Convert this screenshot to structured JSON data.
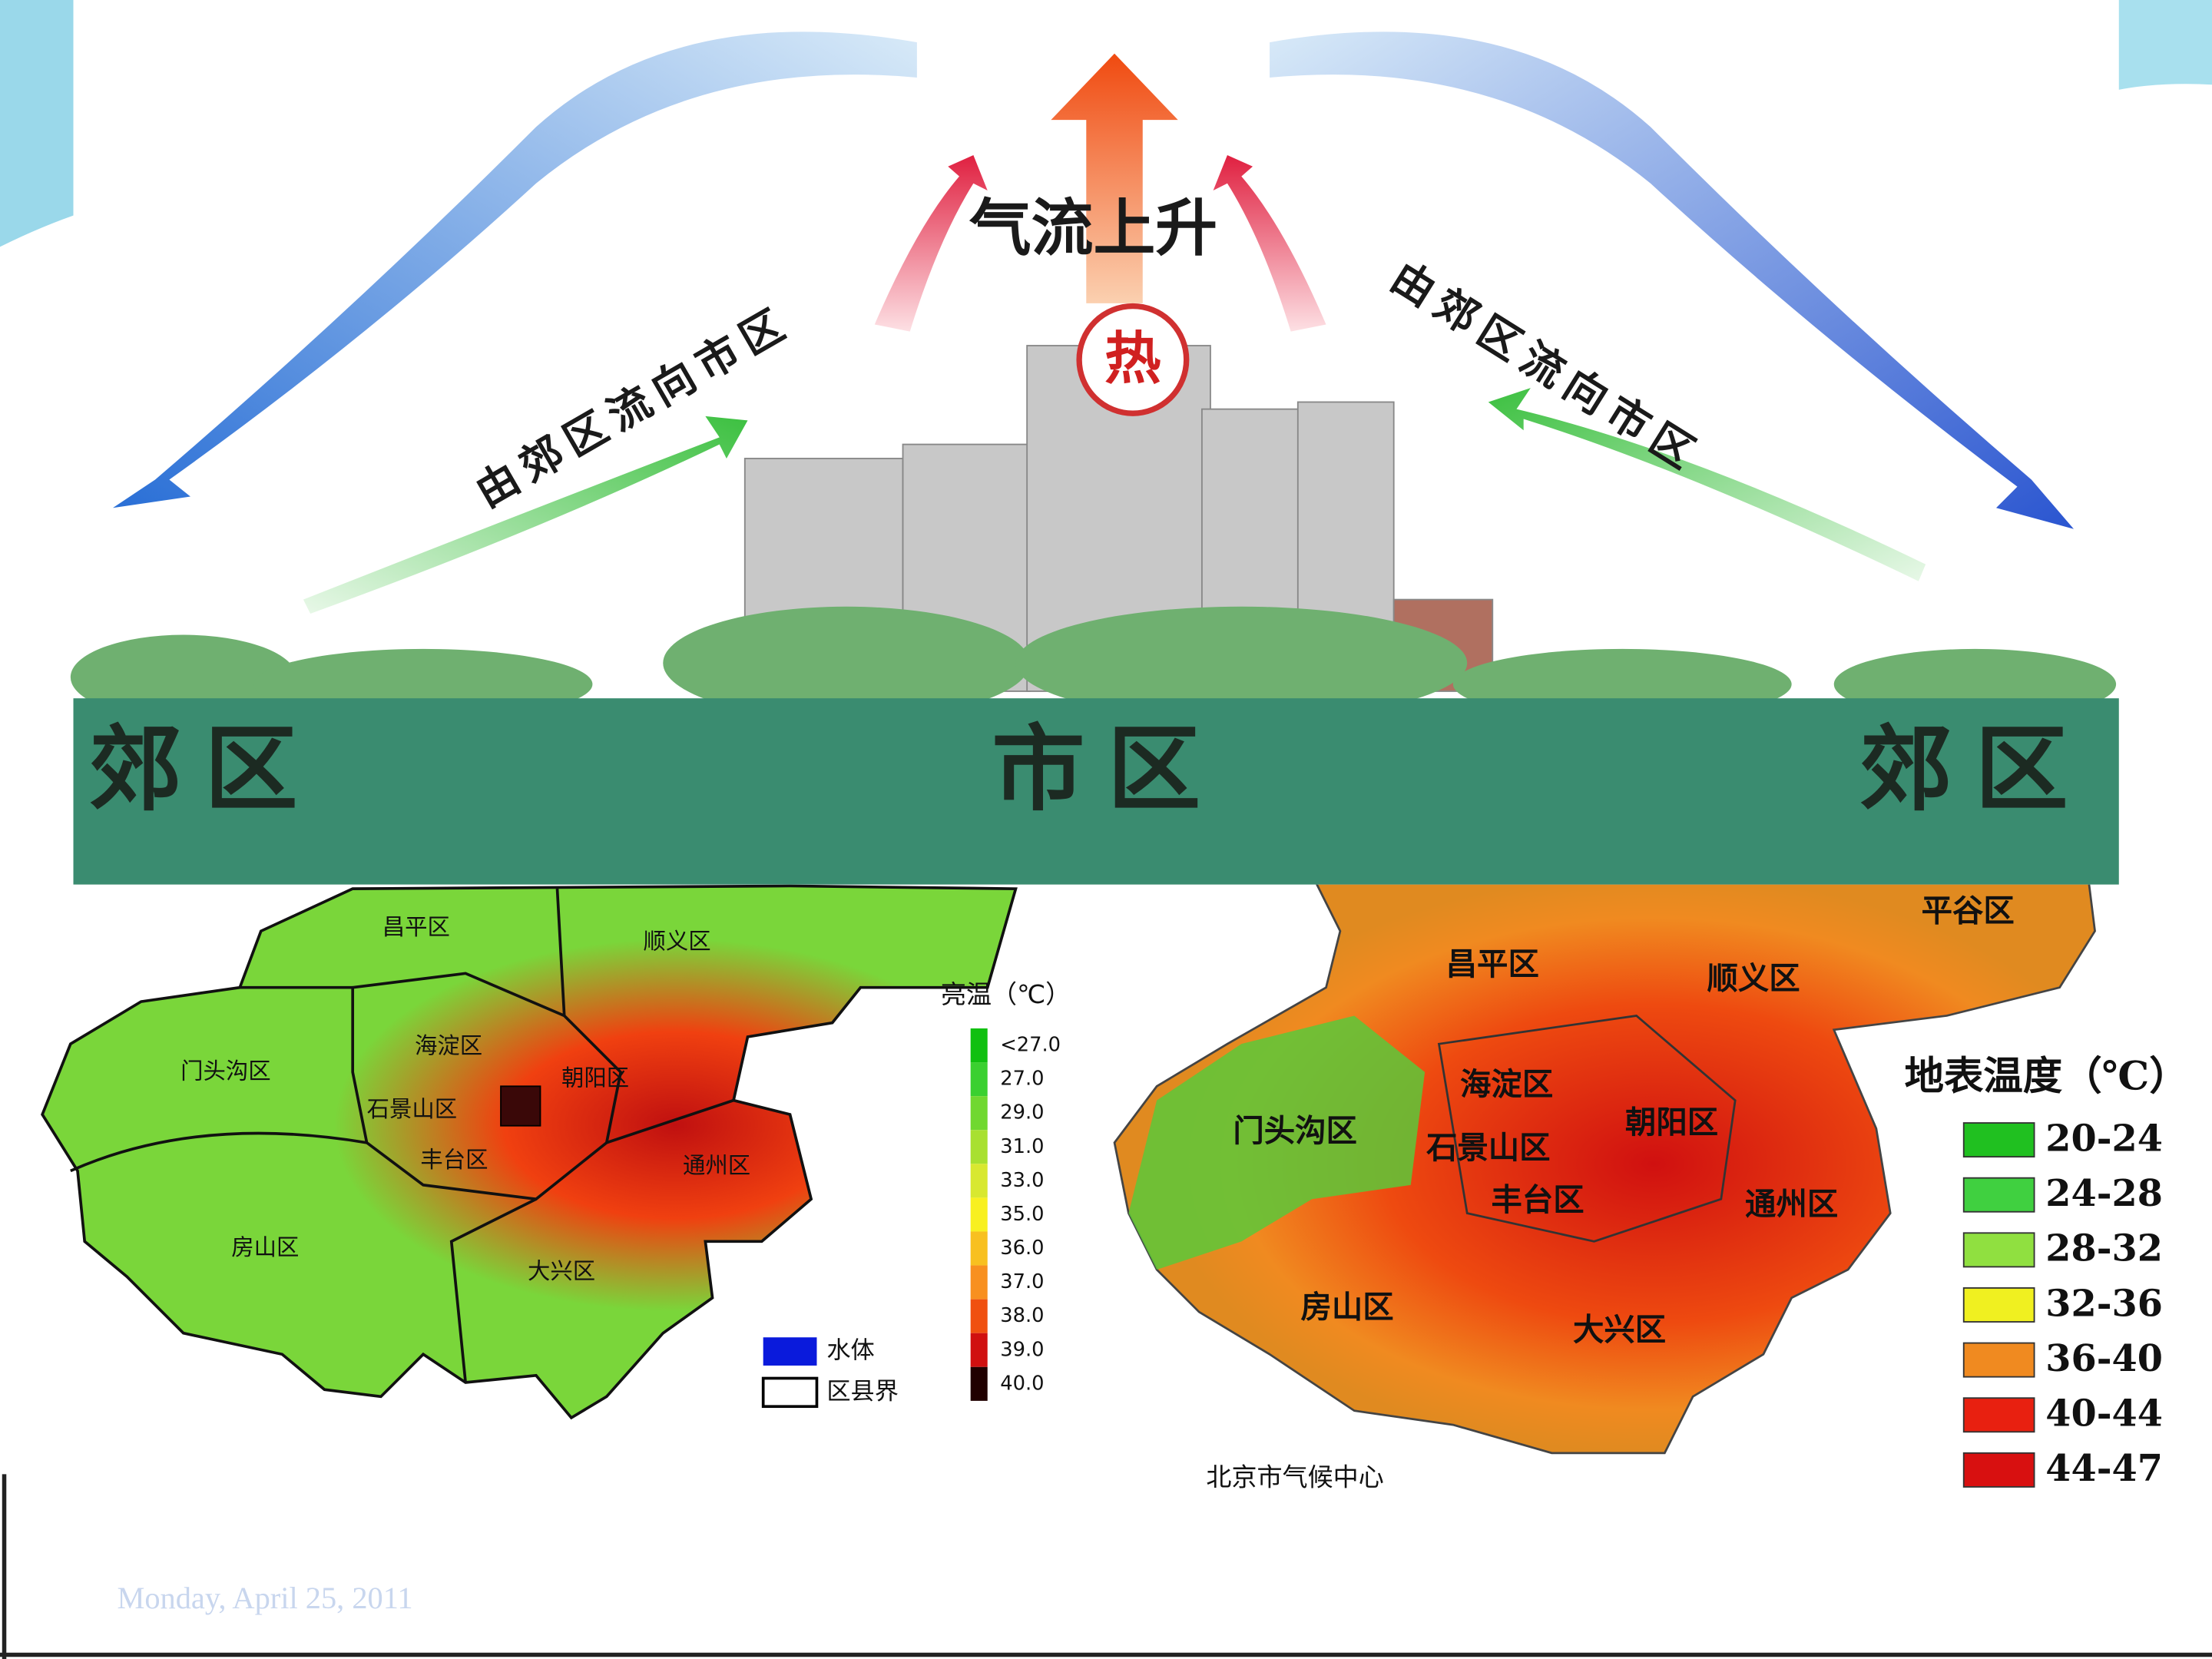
{
  "diagram": {
    "rising": "气流上升",
    "hot": "热",
    "left_flow": "由郊区流向市区",
    "right_flow": "由郊区流向市区",
    "zones": [
      "郊区",
      "市区",
      "郊区"
    ]
  },
  "map_left": {
    "districts": [
      "昌平区",
      "顺义区",
      "门头沟区",
      "海淀区",
      "朝阳区",
      "石景山区",
      "丰台区",
      "通州区",
      "房山区",
      "大兴区"
    ],
    "legend_title": "亮温（℃）",
    "legend": [
      "<27.0",
      "27.0",
      "29.0",
      "31.0",
      "33.0",
      "35.0",
      "36.0",
      "37.0",
      "38.0",
      "39.0",
      "40.0"
    ],
    "keys": [
      "水体",
      "区县界"
    ]
  },
  "map_right": {
    "districts": [
      "平谷区",
      "昌平区",
      "顺义区",
      "海淀区",
      "朝阳区",
      "门头沟区",
      "石景山区",
      "丰台区",
      "通州区",
      "房山区",
      "大兴区"
    ],
    "legend_title": "地表温度（℃）",
    "legend": [
      "20-24",
      "24-28",
      "28-32",
      "32-36",
      "36-40",
      "40-44",
      "44-47"
    ],
    "credit": "北京市气候中心"
  },
  "footer": {
    "date": "Monday, April 25, 2011"
  }
}
